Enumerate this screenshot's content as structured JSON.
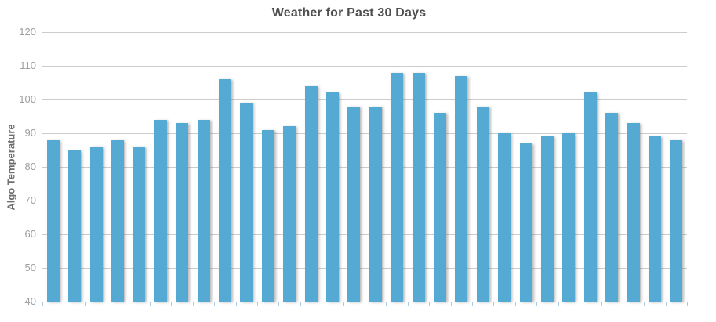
{
  "chart_data": {
    "type": "bar",
    "title": "Weather for Past 30 Days",
    "xlabel": "",
    "ylabel": "Algo Temperature",
    "values": [
      88,
      85,
      86,
      88,
      86,
      94,
      93,
      94,
      106,
      99,
      91,
      92,
      104,
      102,
      98,
      98,
      108,
      108,
      96,
      107,
      98,
      90,
      87,
      89,
      90,
      102,
      96,
      93,
      89,
      88
    ],
    "ylim": [
      40,
      120
    ],
    "y_ticks": [
      120,
      110,
      100,
      90,
      80,
      70,
      60,
      50,
      40
    ],
    "x_tick_labels": "none",
    "grid": "horizontal",
    "legend": "none",
    "bar_color": "#55aad4",
    "gridline_color": "#cccccc",
    "tick_mark_color": "#aecbdd",
    "title_color": "#4f4f4f",
    "axis_label_color": "#6e6e6e",
    "tick_label_color": "#9e9e9e"
  }
}
